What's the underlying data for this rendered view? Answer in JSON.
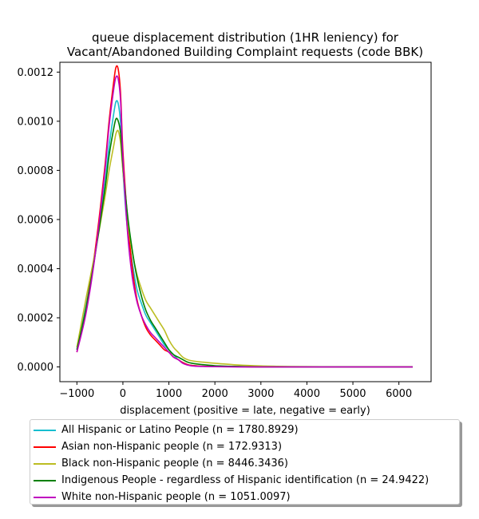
{
  "chart_data": {
    "type": "line",
    "title": "queue displacement distribution (1HR leniency) for\nVacant/Abandoned Building Complaint  requests (code BBK)",
    "xlabel": "displacement (positive = late, negative = early)",
    "ylabel": "",
    "xlim": [
      -1370,
      6700
    ],
    "ylim": [
      -6e-05,
      0.00124
    ],
    "xticks": [
      "−1000",
      "0",
      "1000",
      "2000",
      "3000",
      "4000",
      "5000",
      "6000"
    ],
    "yticks": [
      "0.0000",
      "0.0002",
      "0.0004",
      "0.0006",
      "0.0008",
      "0.0010",
      "0.0012"
    ],
    "grid": false,
    "legend_position": "below",
    "series": [
      {
        "name": "All Hispanic or Latino People (n = 1780.8929)",
        "color": "#17becf",
        "x": [
          -1000,
          -800,
          -600,
          -400,
          -300,
          -200,
          -150,
          -100,
          -50,
          0,
          100,
          200,
          300,
          400,
          500,
          600,
          700,
          800,
          900,
          1000,
          1100,
          1200,
          1300,
          1400,
          1500,
          1700,
          2000,
          2500,
          3000,
          3500,
          4000,
          5000,
          6300
        ],
        "y": [
          7e-05,
          0.00025,
          0.00047,
          0.00073,
          0.0009,
          0.00103,
          0.00108,
          0.00107,
          0.00099,
          0.0008,
          0.00056,
          0.00043,
          0.00032,
          0.00026,
          0.00021,
          0.00018,
          0.00015,
          0.00012,
          9e-05,
          7e-05,
          5e-05,
          3e-05,
          1.8e-05,
          1e-05,
          6e-06,
          3e-06,
          2e-06,
          1e-06,
          0.0,
          0.0,
          0.0,
          0.0,
          0.0
        ]
      },
      {
        "name": "Asian non-Hispanic people (n = 172.9313)",
        "color": "#ff0000",
        "x": [
          -1000,
          -800,
          -600,
          -400,
          -300,
          -200,
          -150,
          -100,
          -50,
          0,
          100,
          200,
          300,
          400,
          500,
          600,
          700,
          800,
          900,
          1000,
          1100,
          1200,
          1300,
          1400,
          1500,
          1700,
          2000,
          2500,
          3000,
          3500,
          4000,
          5000,
          6300
        ],
        "y": [
          6e-05,
          0.00024,
          0.00048,
          0.0008,
          0.001,
          0.00116,
          0.00122,
          0.00121,
          0.00111,
          0.00088,
          0.0006,
          0.00041,
          0.00028,
          0.00021,
          0.00016,
          0.00013,
          0.00011,
          9e-05,
          7e-05,
          6e-05,
          4e-05,
          3e-05,
          1.8e-05,
          1e-05,
          6e-06,
          3e-06,
          2e-06,
          1e-06,
          0.0,
          0.0,
          0.0,
          0.0,
          0.0
        ]
      },
      {
        "name": "Black non-Hispanic people (n = 8446.3436)",
        "color": "#bcbd22",
        "x": [
          -1000,
          -800,
          -600,
          -400,
          -300,
          -200,
          -150,
          -100,
          -50,
          0,
          100,
          200,
          300,
          400,
          500,
          600,
          700,
          800,
          900,
          1000,
          1100,
          1200,
          1300,
          1400,
          1500,
          1700,
          2000,
          2500,
          3000,
          3500,
          4000,
          5000,
          6300
        ],
        "y": [
          8e-05,
          0.00028,
          0.00047,
          0.00068,
          0.0008,
          0.0009,
          0.00095,
          0.00096,
          0.00091,
          0.0008,
          0.0006,
          0.00047,
          0.00038,
          0.00032,
          0.00027,
          0.00024,
          0.00021,
          0.00018,
          0.00015,
          0.00011,
          8e-05,
          6e-05,
          4e-05,
          3e-05,
          2.5e-05,
          2e-05,
          1.5e-05,
          8e-06,
          4e-06,
          2e-06,
          1e-06,
          0.0,
          0.0
        ]
      },
      {
        "name": "Indigenous People - regardless of Hispanic identification (n = 24.9422)",
        "color": "#008000",
        "x": [
          -1000,
          -800,
          -600,
          -400,
          -300,
          -200,
          -150,
          -100,
          -50,
          0,
          100,
          200,
          300,
          400,
          500,
          600,
          700,
          800,
          900,
          1000,
          1100,
          1200,
          1300,
          1400,
          1500,
          1700,
          2000,
          2500,
          3000,
          3500,
          4000,
          5000,
          6300
        ],
        "y": [
          7e-05,
          0.00024,
          0.00046,
          0.00071,
          0.00086,
          0.00097,
          0.00101,
          0.001,
          0.00095,
          0.00082,
          0.00062,
          0.00048,
          0.00037,
          0.00029,
          0.00023,
          0.00019,
          0.00016,
          0.00013,
          0.0001,
          7e-05,
          5e-05,
          4e-05,
          3e-05,
          2e-05,
          1.5e-05,
          1e-05,
          5e-06,
          2e-06,
          0.0,
          0.0,
          0.0,
          0.0,
          0.0
        ]
      },
      {
        "name": "White non-Hispanic people (n = 1051.0097)",
        "color": "#bf00bf",
        "x": [
          -1000,
          -800,
          -600,
          -400,
          -300,
          -200,
          -150,
          -100,
          -50,
          0,
          100,
          200,
          300,
          400,
          500,
          600,
          700,
          800,
          900,
          1000,
          1100,
          1200,
          1300,
          1400,
          1500,
          1700,
          2000,
          2500,
          3000,
          3500,
          4000,
          5000,
          6300
        ],
        "y": [
          6e-05,
          0.00022,
          0.00046,
          0.00078,
          0.00098,
          0.00113,
          0.00118,
          0.00117,
          0.00108,
          0.00085,
          0.00055,
          0.00037,
          0.00027,
          0.00021,
          0.00017,
          0.00014,
          0.00012,
          0.0001,
          8e-05,
          6e-05,
          4e-05,
          3e-05,
          1.5e-05,
          8e-06,
          4e-06,
          2e-06,
          1e-06,
          0.0,
          0.0,
          0.0,
          0.0,
          0.0,
          0.0
        ]
      }
    ]
  }
}
